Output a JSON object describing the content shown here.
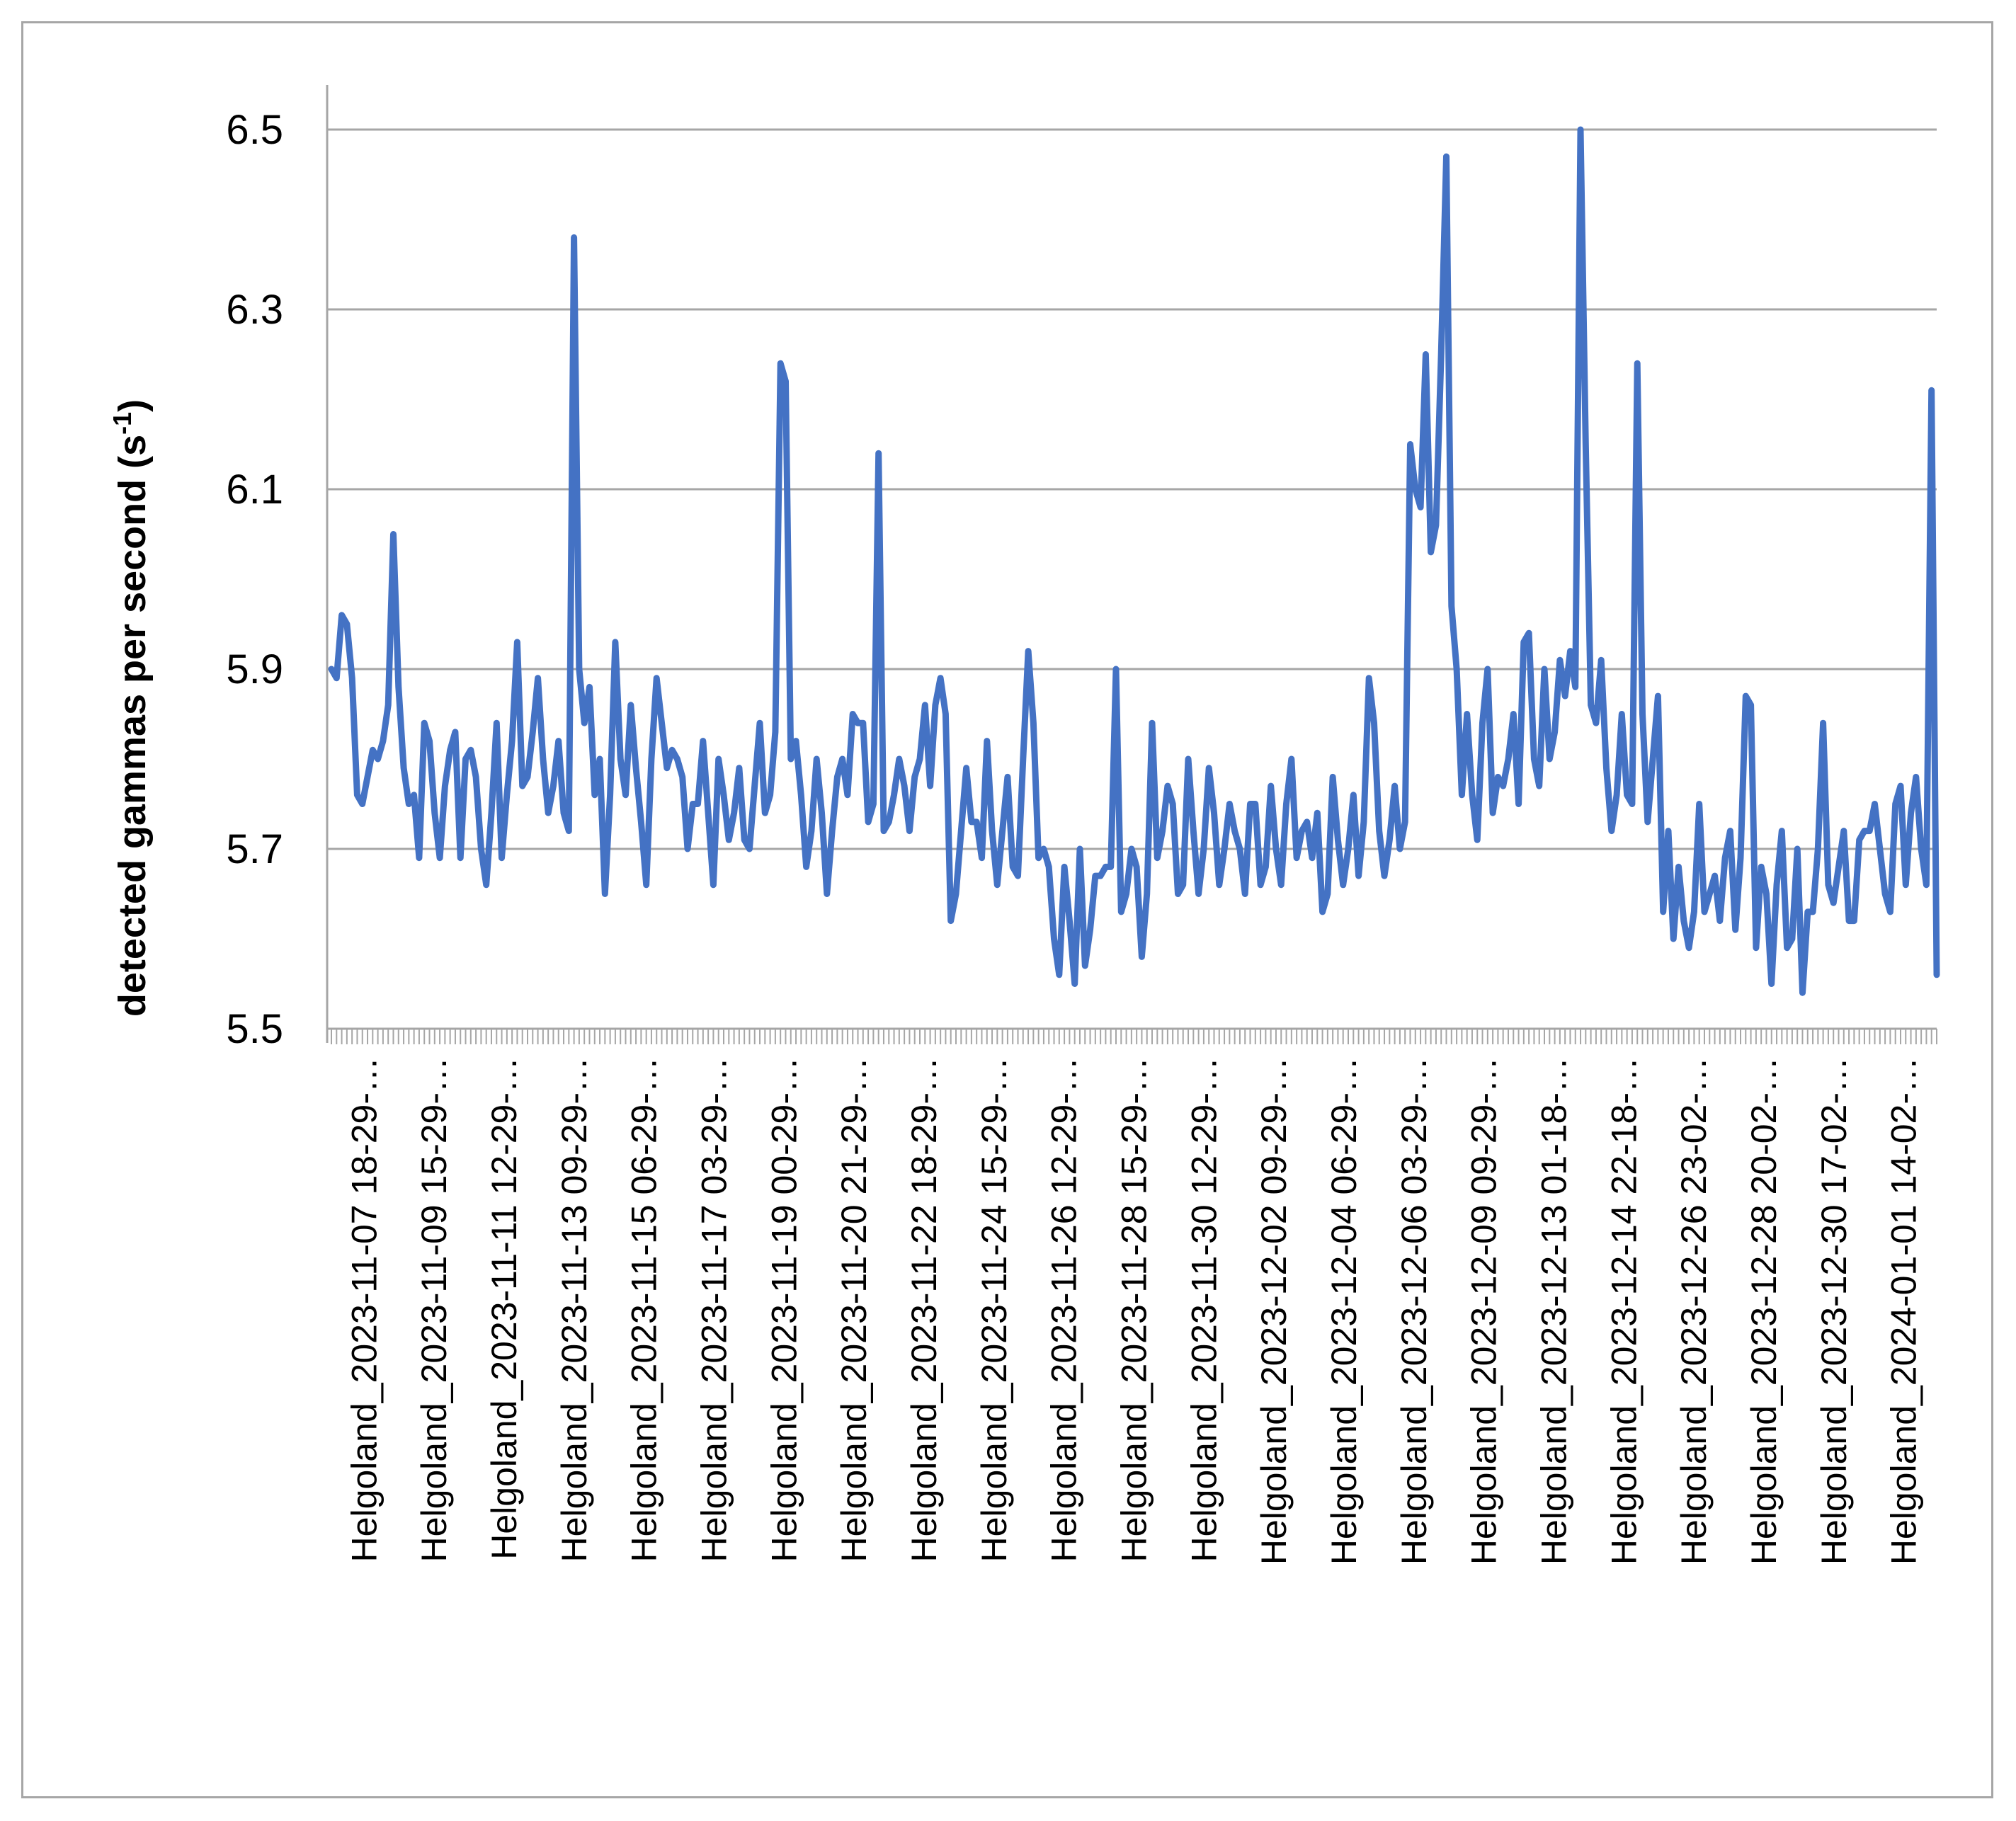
{
  "chart_data": {
    "type": "line",
    "title": "",
    "ylabel": "detected gammas per second (s",
    "ylabel_sup": "-1",
    "ylabel_close": ")",
    "xlabel": "",
    "ylim": [
      5.5,
      6.5
    ],
    "yticks": [
      "5.5",
      "5.7",
      "5.9",
      "6.1",
      "6.3",
      "6.5"
    ],
    "grid": "horizontal",
    "legend": "none",
    "x_tick_labels": [
      "Helgoland_2023-11-07 18-29-…",
      "Helgoland_2023-11-09 15-29-…",
      "Helgoland_2023-11-11 12-29-…",
      "Helgoland_2023-11-13 09-29-…",
      "Helgoland_2023-11-15 06-29-…",
      "Helgoland_2023-11-17 03-29-…",
      "Helgoland_2023-11-19 00-29-…",
      "Helgoland_2023-11-20 21-29-…",
      "Helgoland_2023-11-22 18-29-…",
      "Helgoland_2023-11-24 15-29-…",
      "Helgoland_2023-11-26 12-29-…",
      "Helgoland_2023-11-28 15-29-…",
      "Helgoland_2023-11-30 12-29-…",
      "Helgoland_2023-12-02 09-29-…",
      "Helgoland_2023-12-04 06-29-…",
      "Helgoland_2023-12-06 03-29-…",
      "Helgoland_2023-12-09 09-29-…",
      "Helgoland_2023-12-13 01-18-…",
      "Helgoland_2023-12-14 22-18-…",
      "Helgoland_2023-12-26 23-02-…",
      "Helgoland_2023-12-28 20-02-…",
      "Helgoland_2023-12-30 17-02-…",
      "Helgoland_2024-01-01 14-02-…"
    ],
    "series": [
      {
        "color": "#4472c4",
        "values": [
          5.9,
          5.89,
          5.96,
          5.95,
          5.89,
          5.76,
          5.75,
          5.78,
          5.81,
          5.8,
          5.82,
          5.86,
          6.05,
          5.88,
          5.79,
          5.75,
          5.76,
          5.69,
          5.84,
          5.82,
          5.74,
          5.69,
          5.77,
          5.81,
          5.83,
          5.69,
          5.8,
          5.81,
          5.78,
          5.7,
          5.66,
          5.74,
          5.84,
          5.69,
          5.76,
          5.82,
          5.93,
          5.77,
          5.78,
          5.83,
          5.89,
          5.8,
          5.74,
          5.77,
          5.82,
          5.74,
          5.72,
          6.38,
          5.9,
          5.84,
          5.88,
          5.76,
          5.8,
          5.65,
          5.76,
          5.93,
          5.8,
          5.76,
          5.86,
          5.79,
          5.73,
          5.66,
          5.8,
          5.89,
          5.84,
          5.79,
          5.81,
          5.8,
          5.78,
          5.7,
          5.75,
          5.75,
          5.82,
          5.74,
          5.66,
          5.8,
          5.76,
          5.71,
          5.74,
          5.79,
          5.71,
          5.7,
          5.77,
          5.84,
          5.74,
          5.76,
          5.83,
          6.24,
          6.22,
          5.8,
          5.82,
          5.76,
          5.68,
          5.72,
          5.8,
          5.74,
          5.65,
          5.72,
          5.78,
          5.8,
          5.76,
          5.85,
          5.84,
          5.84,
          5.73,
          5.75,
          6.14,
          5.72,
          5.73,
          5.76,
          5.8,
          5.77,
          5.72,
          5.78,
          5.8,
          5.86,
          5.77,
          5.86,
          5.89,
          5.85,
          5.62,
          5.65,
          5.72,
          5.79,
          5.73,
          5.73,
          5.69,
          5.82,
          5.72,
          5.66,
          5.72,
          5.78,
          5.68,
          5.67,
          5.8,
          5.92,
          5.84,
          5.69,
          5.7,
          5.68,
          5.6,
          5.56,
          5.68,
          5.62,
          5.55,
          5.7,
          5.57,
          5.61,
          5.67,
          5.67,
          5.68,
          5.68,
          5.9,
          5.63,
          5.65,
          5.7,
          5.68,
          5.58,
          5.65,
          5.84,
          5.69,
          5.72,
          5.77,
          5.75,
          5.65,
          5.66,
          5.8,
          5.72,
          5.65,
          5.7,
          5.79,
          5.74,
          5.66,
          5.7,
          5.75,
          5.72,
          5.7,
          5.65,
          5.75,
          5.75,
          5.66,
          5.68,
          5.77,
          5.7,
          5.66,
          5.75,
          5.8,
          5.69,
          5.72,
          5.73,
          5.69,
          5.74,
          5.63,
          5.65,
          5.78,
          5.71,
          5.66,
          5.7,
          5.76,
          5.67,
          5.73,
          5.89,
          5.84,
          5.72,
          5.67,
          5.71,
          5.77,
          5.7,
          5.73,
          6.15,
          6.1,
          6.08,
          6.25,
          6.03,
          6.06,
          6.25,
          6.47,
          5.97,
          5.9,
          5.76,
          5.85,
          5.76,
          5.71,
          5.84,
          5.9,
          5.74,
          5.78,
          5.77,
          5.8,
          5.85,
          5.75,
          5.93,
          5.94,
          5.8,
          5.77,
          5.9,
          5.8,
          5.83,
          5.91,
          5.87,
          5.92,
          5.88,
          6.5,
          6.15,
          5.86,
          5.84,
          5.91,
          5.79,
          5.72,
          5.76,
          5.85,
          5.76,
          5.75,
          6.24,
          5.85,
          5.73,
          5.8,
          5.87,
          5.63,
          5.72,
          5.6,
          5.68,
          5.62,
          5.59,
          5.63,
          5.75,
          5.63,
          5.65,
          5.67,
          5.62,
          5.69,
          5.72,
          5.61,
          5.69,
          5.87,
          5.86,
          5.59,
          5.68,
          5.65,
          5.55,
          5.66,
          5.72,
          5.59,
          5.6,
          5.7,
          5.54,
          5.63,
          5.63,
          5.7,
          5.84,
          5.66,
          5.64,
          5.68,
          5.72,
          5.62,
          5.62,
          5.71,
          5.72,
          5.72,
          5.75,
          5.7,
          5.65,
          5.63,
          5.75,
          5.77,
          5.66,
          5.74,
          5.78,
          5.7,
          5.66,
          6.21,
          5.56
        ]
      }
    ]
  }
}
